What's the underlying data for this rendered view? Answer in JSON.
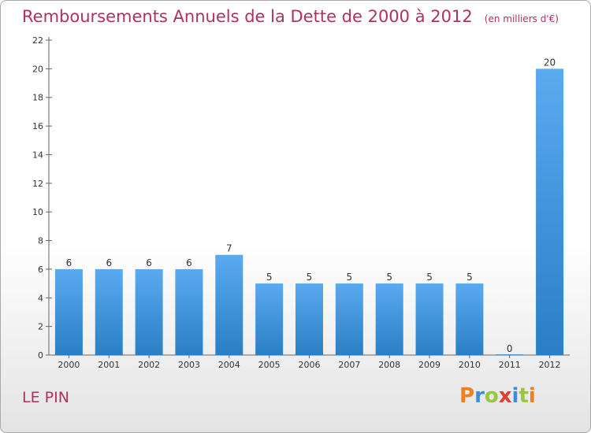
{
  "chart_data": {
    "type": "bar",
    "title": "Remboursements Annuels de la Dette de 2000 à 2012",
    "unit_note": "(en milliers d'€)",
    "categories": [
      "2000",
      "2001",
      "2002",
      "2003",
      "2004",
      "2005",
      "2006",
      "2007",
      "2008",
      "2009",
      "2010",
      "2011",
      "2012"
    ],
    "values": [
      6,
      6,
      6,
      6,
      7,
      5,
      5,
      5,
      5,
      5,
      5,
      0,
      20
    ],
    "ylim": [
      0,
      22
    ],
    "yticks": [
      0,
      2,
      4,
      6,
      8,
      10,
      12,
      14,
      16,
      18,
      20,
      22
    ],
    "bar_color_top": "#5aaaf0",
    "bar_color_bottom": "#2a7fc4",
    "grid": false,
    "legend": "none"
  },
  "footer": {
    "city": "LE PIN",
    "logo": "Proxiti"
  },
  "colors": {
    "title": "#b2305f",
    "logo_letters": [
      "#f07f1e",
      "#3a8fd8",
      "#9bc53d",
      "#e63b2e",
      "#3a8fd8",
      "#9bc53d",
      "#f07f1e"
    ]
  }
}
